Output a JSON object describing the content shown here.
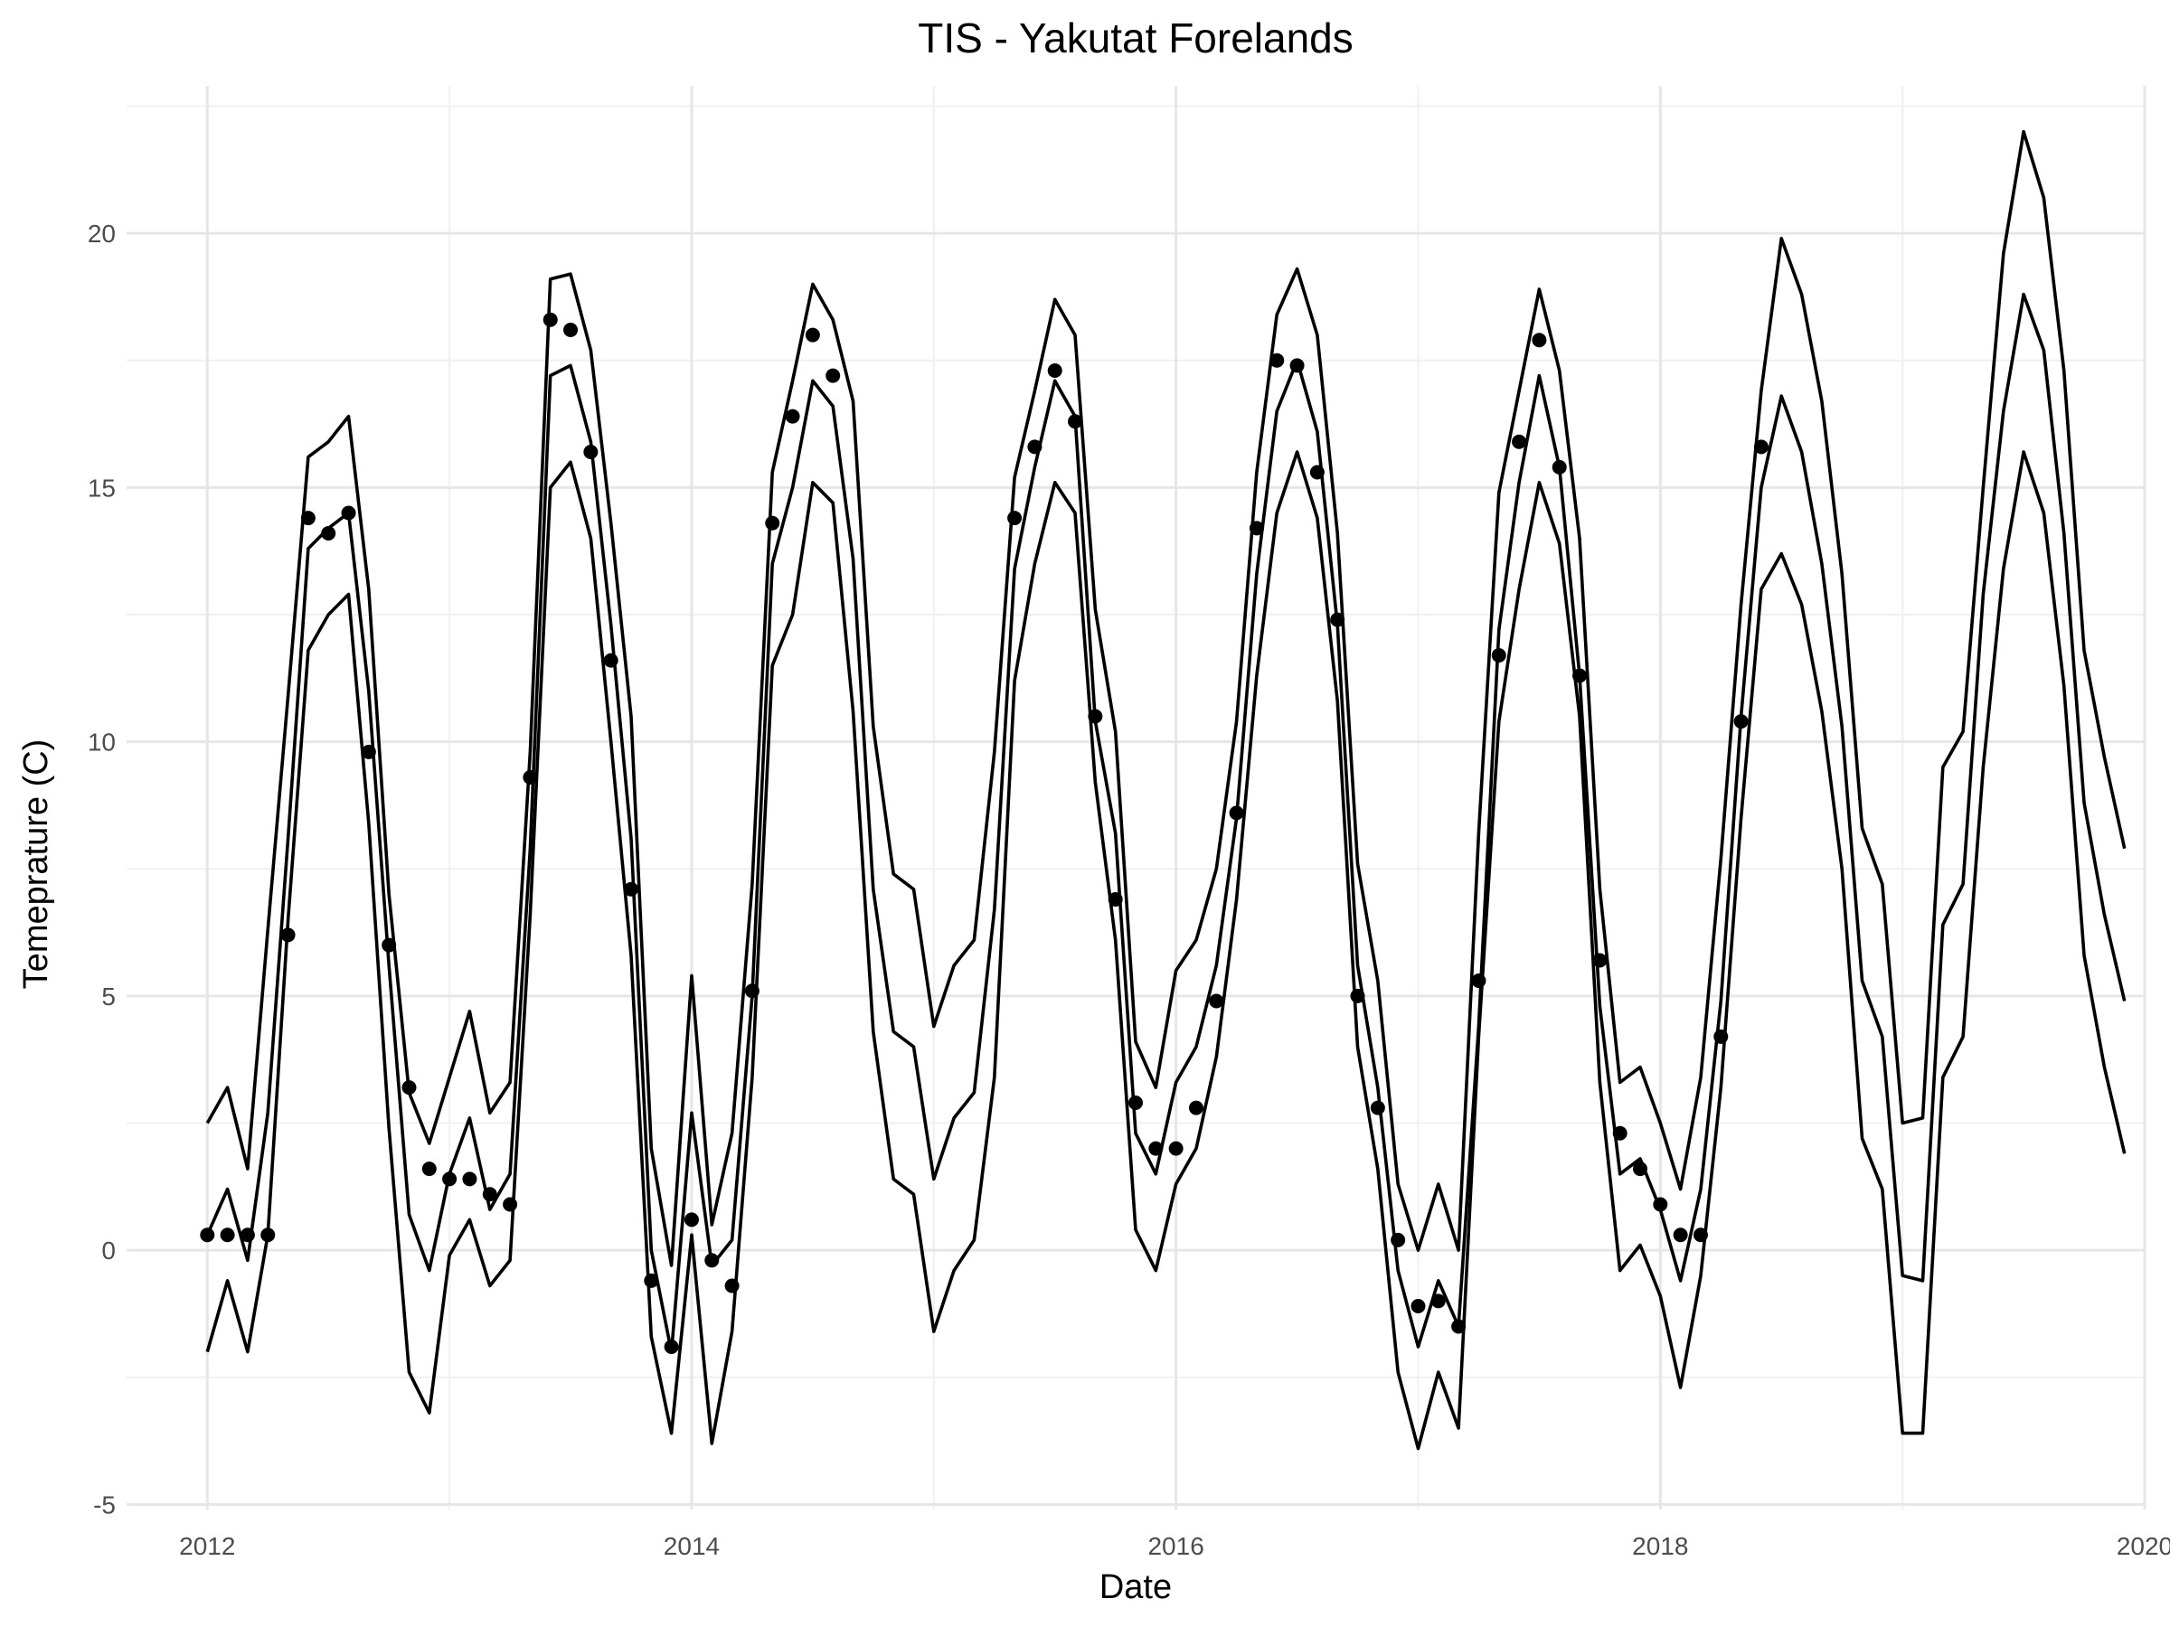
{
  "chart_data": {
    "type": "line",
    "title": "TIS - Yakutat Forelands",
    "xlabel": "Date",
    "ylabel": "Temeprature (C)",
    "x_ticks": [
      "2012",
      "2014",
      "2016",
      "2018",
      "2020"
    ],
    "y_ticks": [
      "-5",
      "0",
      "5",
      "10",
      "15",
      "20"
    ],
    "xlim": [
      "2011-09",
      "2020-01"
    ],
    "ylim": [
      -5.1,
      22.9
    ],
    "grid": true,
    "legend": "none",
    "x": [
      "2012-01",
      "2012-02",
      "2012-03",
      "2012-04",
      "2012-05",
      "2012-06",
      "2012-07",
      "2012-08",
      "2012-09",
      "2012-10",
      "2012-11",
      "2012-12",
      "2013-01",
      "2013-02",
      "2013-03",
      "2013-04",
      "2013-05",
      "2013-06",
      "2013-07",
      "2013-08",
      "2013-09",
      "2013-10",
      "2013-11",
      "2013-12",
      "2014-01",
      "2014-02",
      "2014-03",
      "2014-04",
      "2014-05",
      "2014-06",
      "2014-07",
      "2014-08",
      "2014-09",
      "2014-10",
      "2014-11",
      "2014-12",
      "2015-01",
      "2015-02",
      "2015-03",
      "2015-04",
      "2015-05",
      "2015-06",
      "2015-07",
      "2015-08",
      "2015-09",
      "2015-10",
      "2015-11",
      "2015-12",
      "2016-01",
      "2016-02",
      "2016-03",
      "2016-04",
      "2016-05",
      "2016-06",
      "2016-07",
      "2016-08",
      "2016-09",
      "2016-10",
      "2016-11",
      "2016-12",
      "2017-01",
      "2017-02",
      "2017-03",
      "2017-04",
      "2017-05",
      "2017-06",
      "2017-07",
      "2017-08",
      "2017-09",
      "2017-10",
      "2017-11",
      "2017-12",
      "2018-01",
      "2018-02",
      "2018-03",
      "2018-04",
      "2018-05",
      "2018-06",
      "2018-07",
      "2018-08",
      "2018-09",
      "2018-10",
      "2018-11",
      "2018-12",
      "2019-01",
      "2019-02",
      "2019-03",
      "2019-04",
      "2019-05",
      "2019-06",
      "2019-07",
      "2019-08",
      "2019-09",
      "2019-10",
      "2019-11",
      "2019-12"
    ],
    "series": [
      {
        "values": [
          2.5,
          3.2,
          1.6,
          6.3,
          10.9,
          15.6,
          15.9,
          16.4,
          13.0,
          7.0,
          3.1,
          2.1,
          3.4,
          4.7,
          2.7,
          3.3,
          9.8,
          19.1,
          19.2,
          17.7,
          14.3,
          10.5,
          2.0,
          -0.3,
          5.4,
          0.5,
          2.3,
          7.2,
          15.3,
          17.1,
          19.0,
          18.3,
          16.7,
          10.3,
          7.4,
          7.1,
          4.4,
          5.6,
          6.1,
          9.8,
          15.2,
          16.9,
          18.7,
          18.0,
          12.6,
          10.2,
          4.1,
          3.2,
          5.5,
          6.1,
          7.5,
          10.4,
          15.3,
          18.4,
          19.3,
          18.0,
          14.1,
          7.6,
          5.3,
          1.3,
          0.0,
          1.3,
          0.0,
          8.2,
          14.9,
          16.9,
          18.9,
          17.3,
          14.0,
          7.1,
          3.3,
          3.6,
          2.5,
          1.2,
          3.4,
          7.7,
          12.7,
          16.9,
          19.9,
          18.8,
          16.7,
          13.3,
          8.3,
          7.2,
          2.5,
          2.6,
          9.5,
          10.2,
          15.0,
          19.6,
          22.0,
          20.7,
          17.3,
          11.8,
          9.7,
          7.9
        ]
      },
      {
        "values": [
          0.3,
          1.2,
          -0.2,
          2.7,
          8.1,
          13.8,
          14.2,
          14.5,
          11.0,
          5.6,
          0.7,
          -0.4,
          1.5,
          2.6,
          0.8,
          1.5,
          7.9,
          17.2,
          17.4,
          15.9,
          12.3,
          8.1,
          0.0,
          -2.0,
          2.7,
          -0.3,
          0.2,
          5.0,
          13.5,
          15.0,
          17.1,
          16.6,
          13.6,
          7.1,
          4.3,
          4.0,
          1.4,
          2.6,
          3.1,
          6.7,
          13.4,
          15.4,
          17.1,
          16.4,
          10.4,
          8.2,
          2.3,
          1.5,
          3.3,
          4.0,
          5.6,
          8.5,
          13.3,
          16.5,
          17.5,
          16.1,
          12.3,
          5.6,
          3.2,
          -0.4,
          -1.9,
          -0.6,
          -1.5,
          4.4,
          12.2,
          15.1,
          17.2,
          15.4,
          11.3,
          4.8,
          1.5,
          1.8,
          0.8,
          -0.6,
          1.2,
          4.9,
          10.5,
          15.0,
          16.8,
          15.7,
          13.5,
          10.3,
          5.3,
          4.2,
          -0.5,
          -0.6,
          6.4,
          7.2,
          12.9,
          16.5,
          18.8,
          17.7,
          14.1,
          8.8,
          6.6,
          4.9
        ]
      },
      {
        "values": [
          -2.0,
          -0.6,
          -2.0,
          0.3,
          6.5,
          11.8,
          12.5,
          12.9,
          8.4,
          2.4,
          -2.4,
          -3.2,
          -0.1,
          0.6,
          -0.7,
          -0.2,
          6.6,
          15.0,
          15.5,
          14.0,
          10.0,
          5.8,
          -1.7,
          -3.6,
          0.3,
          -3.8,
          -1.6,
          3.4,
          11.5,
          12.5,
          15.1,
          14.7,
          10.6,
          4.3,
          1.4,
          1.1,
          -1.6,
          -0.4,
          0.2,
          3.4,
          11.2,
          13.5,
          15.1,
          14.5,
          9.2,
          6.1,
          0.4,
          -0.4,
          1.3,
          2.0,
          3.8,
          6.9,
          11.3,
          14.5,
          15.7,
          14.4,
          10.8,
          4.0,
          1.6,
          -2.4,
          -3.9,
          -2.4,
          -3.5,
          4.2,
          10.4,
          13.0,
          15.1,
          13.9,
          10.5,
          3.3,
          -0.4,
          0.1,
          -0.9,
          -2.7,
          -0.5,
          3.2,
          8.5,
          13.0,
          13.7,
          12.7,
          10.6,
          7.5,
          2.2,
          1.2,
          -3.6,
          -3.6,
          3.4,
          4.2,
          9.5,
          13.4,
          15.7,
          14.5,
          11.1,
          5.8,
          3.6,
          1.9
        ]
      }
    ],
    "points": {
      "x": [
        "2012-01",
        "2012-02",
        "2012-03",
        "2012-04",
        "2012-05",
        "2012-06",
        "2012-07",
        "2012-08",
        "2012-09",
        "2012-10",
        "2012-11",
        "2012-12",
        "2013-01",
        "2013-02",
        "2013-03",
        "2013-04",
        "2013-05",
        "2013-06",
        "2013-07",
        "2013-08",
        "2013-09",
        "2013-10",
        "2013-11",
        "2013-12",
        "2014-01",
        "2014-02",
        "2014-03",
        "2014-04",
        "2014-05",
        "2014-06",
        "2014-07",
        "2014-08",
        "2015-05",
        "2015-06",
        "2015-07",
        "2015-08",
        "2015-09",
        "2015-10",
        "2015-11",
        "2015-12",
        "2016-01",
        "2016-02",
        "2016-03",
        "2016-04",
        "2016-05",
        "2016-06",
        "2016-07",
        "2016-08",
        "2016-09",
        "2016-10",
        "2016-11",
        "2016-12",
        "2017-01",
        "2017-02",
        "2017-03",
        "2017-04",
        "2017-05",
        "2017-06",
        "2017-07",
        "2017-08",
        "2017-09",
        "2017-10",
        "2017-11",
        "2017-12",
        "2018-01",
        "2018-02",
        "2018-03",
        "2018-04",
        "2018-05",
        "2018-06"
      ],
      "y": [
        0.3,
        0.3,
        0.3,
        0.3,
        6.2,
        14.4,
        14.1,
        14.5,
        9.8,
        6.0,
        3.2,
        1.6,
        1.4,
        1.4,
        1.1,
        0.9,
        9.3,
        18.3,
        18.1,
        15.7,
        11.6,
        7.1,
        -0.6,
        -1.9,
        0.6,
        -0.2,
        -0.7,
        5.1,
        14.3,
        16.4,
        18.0,
        17.2,
        14.4,
        15.8,
        17.3,
        16.3,
        10.5,
        6.9,
        2.9,
        2.0,
        2.0,
        2.8,
        4.9,
        8.6,
        14.2,
        17.5,
        17.4,
        15.3,
        12.4,
        5.0,
        2.8,
        0.2,
        -1.1,
        -1.0,
        -1.5,
        5.3,
        11.7,
        15.9,
        17.9,
        15.4,
        11.3,
        5.7,
        2.3,
        1.6,
        0.9,
        0.3,
        0.3,
        4.2,
        10.4,
        15.8
      ]
    }
  }
}
